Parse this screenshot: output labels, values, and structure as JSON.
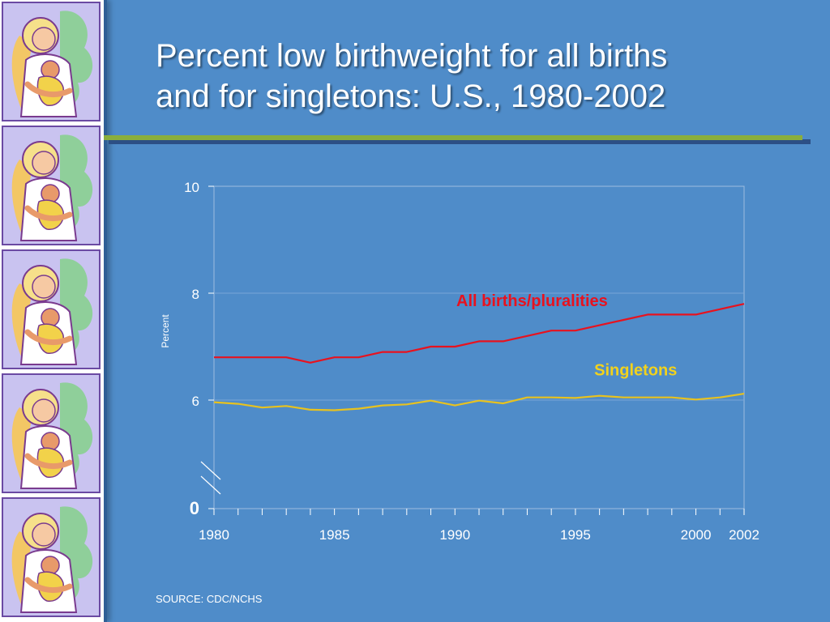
{
  "slide": {
    "title_line1": "Percent low birthweight for all births",
    "title_line2": "and for singletons: U.S., 1980-2002",
    "source": "SOURCE: CDC/NCHS",
    "background_color": "#4f8cc9",
    "accent_color": "#8aae3c"
  },
  "sidebar": {
    "tile_count": 5,
    "tile_icon": "mother-and-child-clipart-icon"
  },
  "chart_data": {
    "type": "line",
    "title": "",
    "xlabel": "",
    "ylabel": "Percent",
    "x": [
      1980,
      1981,
      1982,
      1983,
      1984,
      1985,
      1986,
      1987,
      1988,
      1989,
      1990,
      1991,
      1992,
      1993,
      1994,
      1995,
      1996,
      1997,
      1998,
      1999,
      2000,
      2001,
      2002
    ],
    "x_tick_labels": [
      "1980",
      "1985",
      "1990",
      "1995",
      "2000",
      "2002"
    ],
    "y_tick_labels": [
      "0",
      "6",
      "8",
      "10"
    ],
    "ylim": [
      0,
      10
    ],
    "y_axis_break": "between 0 and 6",
    "grid": "horizontal at 6 and 8",
    "series": [
      {
        "name": "All births/pluralities",
        "color": "#e8121e",
        "label_color": "#e8121e",
        "values": [
          6.8,
          6.8,
          6.8,
          6.8,
          6.7,
          6.8,
          6.8,
          6.9,
          6.9,
          7.0,
          7.0,
          7.1,
          7.1,
          7.2,
          7.3,
          7.3,
          7.4,
          7.5,
          7.6,
          7.6,
          7.6,
          7.7,
          7.8
        ]
      },
      {
        "name": "Singletons",
        "color": "#e8c21e",
        "label_color": "#f2d21c",
        "values": [
          5.96,
          5.93,
          5.86,
          5.89,
          5.82,
          5.81,
          5.84,
          5.9,
          5.92,
          5.99,
          5.9,
          5.99,
          5.94,
          6.05,
          6.05,
          6.04,
          6.08,
          6.05,
          6.05,
          6.05,
          6.01,
          6.05,
          6.12
        ]
      }
    ]
  }
}
